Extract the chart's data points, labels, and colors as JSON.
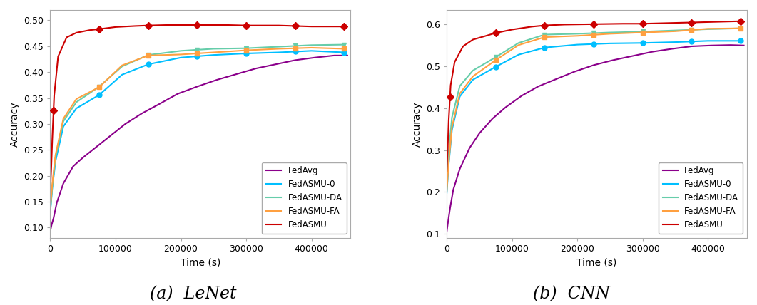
{
  "lenet": {
    "title": "(a)  LeNet",
    "ylabel": "Accuracy",
    "xlabel": "Time (s)",
    "xlim": [
      0,
      460000
    ],
    "ylim": [
      0.08,
      0.52
    ],
    "yticks": [
      0.1,
      0.15,
      0.2,
      0.25,
      0.3,
      0.35,
      0.4,
      0.45,
      0.5
    ],
    "xticks": [
      0,
      100000,
      200000,
      300000,
      400000
    ],
    "series": {
      "FedAvg": {
        "color": "#8B008B",
        "marker": null,
        "x": [
          0,
          2000,
          5000,
          10000,
          20000,
          35000,
          50000,
          70000,
          90000,
          115000,
          140000,
          165000,
          195000,
          225000,
          255000,
          285000,
          315000,
          345000,
          375000,
          405000,
          435000,
          455000
        ],
        "y": [
          0.093,
          0.105,
          0.118,
          0.148,
          0.185,
          0.218,
          0.235,
          0.255,
          0.275,
          0.3,
          0.32,
          0.337,
          0.358,
          0.372,
          0.385,
          0.396,
          0.407,
          0.415,
          0.423,
          0.428,
          0.432,
          0.432
        ]
      },
      "FedASMU-0": {
        "color": "#00BFFF",
        "marker": "o",
        "marker_x": [
          75000,
          150000,
          225000,
          300000,
          375000,
          450000
        ],
        "x": [
          0,
          3000,
          8000,
          20000,
          40000,
          75000,
          110000,
          150000,
          200000,
          250000,
          300000,
          350000,
          400000,
          450000
        ],
        "y": [
          0.131,
          0.175,
          0.228,
          0.295,
          0.33,
          0.356,
          0.395,
          0.415,
          0.428,
          0.433,
          0.436,
          0.438,
          0.441,
          0.438
        ]
      },
      "FedASMU-DA": {
        "color": "#66CDAA",
        "marker": "v",
        "marker_x": [
          75000,
          150000,
          225000,
          300000,
          375000,
          450000
        ],
        "x": [
          0,
          3000,
          8000,
          20000,
          40000,
          75000,
          110000,
          150000,
          200000,
          250000,
          300000,
          350000,
          400000,
          450000
        ],
        "y": [
          0.132,
          0.178,
          0.235,
          0.305,
          0.342,
          0.372,
          0.411,
          0.433,
          0.441,
          0.445,
          0.446,
          0.449,
          0.452,
          0.453
        ]
      },
      "FedASMU-FA": {
        "color": "#FFA040",
        "marker": "s",
        "marker_x": [
          75000,
          150000,
          225000,
          300000,
          375000,
          450000
        ],
        "x": [
          0,
          3000,
          8000,
          20000,
          40000,
          75000,
          110000,
          150000,
          200000,
          250000,
          300000,
          350000,
          400000,
          450000
        ],
        "y": [
          0.137,
          0.183,
          0.24,
          0.31,
          0.348,
          0.371,
          0.413,
          0.432,
          0.434,
          0.438,
          0.442,
          0.445,
          0.447,
          0.445
        ]
      },
      "FedASMU": {
        "color": "#CC0000",
        "marker": "D",
        "marker_x": [
          5000,
          75000,
          150000,
          225000,
          300000,
          375000,
          450000
        ],
        "x": [
          0,
          1500,
          3000,
          6000,
          12000,
          25000,
          40000,
          60000,
          75000,
          100000,
          130000,
          150000,
          180000,
          225000,
          270000,
          300000,
          350000,
          400000,
          450000
        ],
        "y": [
          0.173,
          0.215,
          0.268,
          0.355,
          0.43,
          0.467,
          0.476,
          0.481,
          0.483,
          0.487,
          0.489,
          0.49,
          0.491,
          0.491,
          0.491,
          0.49,
          0.49,
          0.488,
          0.488
        ]
      }
    }
  },
  "cnn": {
    "title": "(b)  CNN",
    "ylabel": "Accuracy",
    "xlabel": "Time (s)",
    "xlim": [
      0,
      460000
    ],
    "ylim": [
      0.09,
      0.635
    ],
    "yticks": [
      0.1,
      0.2,
      0.3,
      0.4,
      0.5,
      0.6
    ],
    "xticks": [
      0,
      100000,
      200000,
      300000,
      400000
    ],
    "series": {
      "FedAvg": {
        "color": "#8B008B",
        "marker": null,
        "x": [
          0,
          2000,
          5000,
          10000,
          20000,
          35000,
          50000,
          70000,
          90000,
          115000,
          140000,
          165000,
          195000,
          225000,
          255000,
          285000,
          315000,
          345000,
          375000,
          405000,
          435000,
          455000
        ],
        "y": [
          0.105,
          0.128,
          0.16,
          0.205,
          0.255,
          0.305,
          0.34,
          0.375,
          0.402,
          0.43,
          0.452,
          0.468,
          0.487,
          0.503,
          0.515,
          0.525,
          0.535,
          0.542,
          0.548,
          0.55,
          0.551,
          0.55
        ]
      },
      "FedASMU-0": {
        "color": "#00BFFF",
        "marker": "o",
        "marker_x": [
          75000,
          150000,
          225000,
          300000,
          375000,
          450000
        ],
        "x": [
          0,
          3000,
          8000,
          20000,
          40000,
          75000,
          110000,
          150000,
          200000,
          250000,
          300000,
          350000,
          400000,
          450000
        ],
        "y": [
          0.198,
          0.265,
          0.348,
          0.428,
          0.468,
          0.499,
          0.528,
          0.545,
          0.552,
          0.555,
          0.556,
          0.558,
          0.561,
          0.561
        ]
      },
      "FedASMU-DA": {
        "color": "#66CDAA",
        "marker": "v",
        "marker_x": [
          75000,
          150000,
          225000,
          300000,
          375000,
          450000
        ],
        "x": [
          0,
          3000,
          8000,
          20000,
          40000,
          75000,
          110000,
          150000,
          200000,
          250000,
          300000,
          350000,
          400000,
          450000
        ],
        "y": [
          0.23,
          0.295,
          0.378,
          0.453,
          0.49,
          0.522,
          0.556,
          0.576,
          0.578,
          0.581,
          0.583,
          0.586,
          0.589,
          0.591
        ]
      },
      "FedASMU-FA": {
        "color": "#FFA040",
        "marker": "s",
        "marker_x": [
          75000,
          150000,
          225000,
          300000,
          375000,
          450000
        ],
        "x": [
          0,
          3000,
          8000,
          20000,
          40000,
          75000,
          110000,
          150000,
          200000,
          250000,
          300000,
          350000,
          400000,
          450000
        ],
        "y": [
          0.202,
          0.27,
          0.355,
          0.435,
          0.476,
          0.515,
          0.551,
          0.57,
          0.573,
          0.578,
          0.581,
          0.584,
          0.59,
          0.591
        ]
      },
      "FedASMU": {
        "color": "#CC0000",
        "marker": "D",
        "marker_x": [
          5000,
          75000,
          150000,
          225000,
          300000,
          375000,
          450000
        ],
        "x": [
          0,
          1500,
          3000,
          6000,
          12000,
          25000,
          40000,
          60000,
          75000,
          100000,
          130000,
          150000,
          180000,
          225000,
          270000,
          300000,
          350000,
          400000,
          450000
        ],
        "y": [
          0.25,
          0.305,
          0.37,
          0.455,
          0.51,
          0.548,
          0.564,
          0.573,
          0.58,
          0.588,
          0.595,
          0.598,
          0.6,
          0.601,
          0.602,
          0.602,
          0.604,
          0.606,
          0.608
        ]
      }
    }
  },
  "legend_order": [
    "FedAvg",
    "FedASMU-0",
    "FedASMU-DA",
    "FedASMU-FA",
    "FedASMU"
  ],
  "caption_fontsize": 17,
  "axis_fontsize": 10,
  "tick_fontsize": 9
}
